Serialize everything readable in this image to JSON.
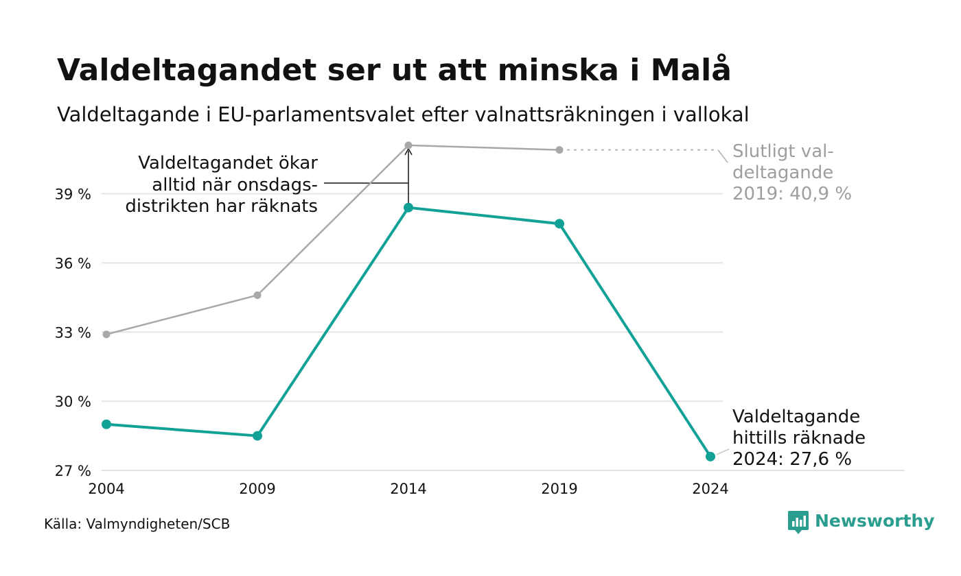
{
  "chart_data": {
    "type": "line",
    "title": "Valdeltagandet ser ut att minska i Malå",
    "subtitle": "Valdeltagande i EU-parlamentsvalet efter valnattsräkningen i vallokal",
    "xlabel": "",
    "ylabel": "",
    "x": [
      2004,
      2009,
      2014,
      2019,
      2024
    ],
    "x_tick_labels": [
      "2004",
      "2009",
      "2014",
      "2019",
      "2024"
    ],
    "ylim": [
      27,
      40.8
    ],
    "y_ticks": [
      27,
      30,
      33,
      36,
      39
    ],
    "y_tick_labels": [
      "27 %",
      "30 %",
      "33 %",
      "36 %",
      "39 %"
    ],
    "grid": true,
    "legend": "none",
    "series": [
      {
        "key": "final",
        "color": "#a8a8a8",
        "values": [
          32.9,
          34.6,
          41.1,
          40.9,
          null
        ]
      },
      {
        "key": "preliminary",
        "color": "#12a197",
        "values": [
          29.0,
          28.5,
          38.4,
          37.7,
          27.6
        ]
      }
    ],
    "annotations": {
      "onsdag": [
        "Valdeltagandet ökar",
        "alltid när onsdags-",
        "distrikten har räknats"
      ],
      "final_2019": [
        "Slutligt val-",
        "deltagande",
        "2019: 40,9 %"
      ],
      "current_2024": [
        "Valdeltagande",
        "hittills räknade",
        "2024: 27,6 %"
      ]
    },
    "source": "Källa: Valmyndigheten/SCB",
    "brand": "Newsworthy"
  }
}
